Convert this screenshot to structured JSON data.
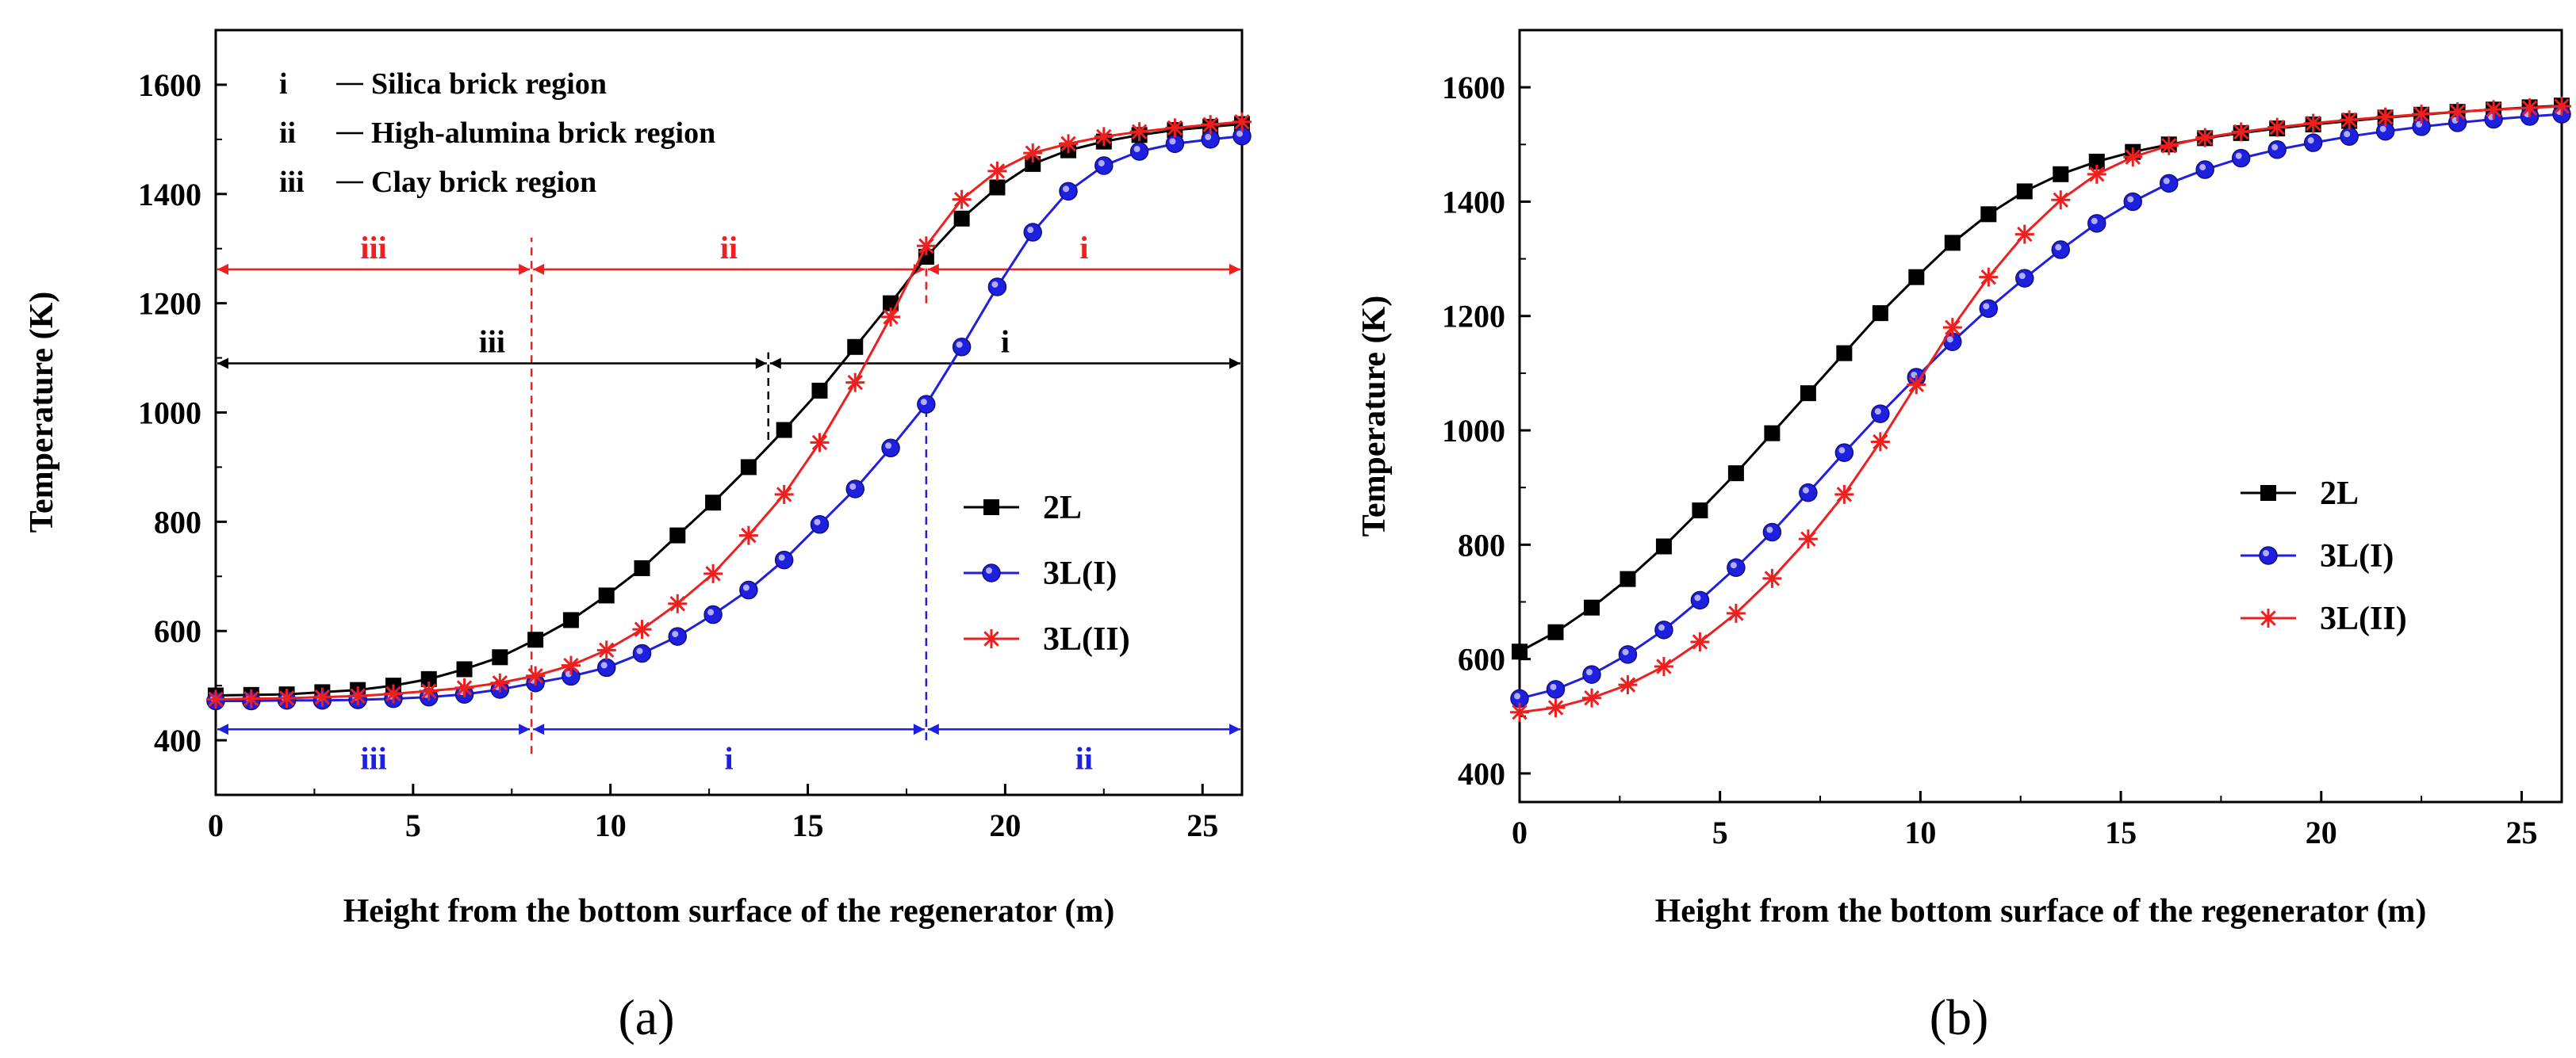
{
  "chart_data": [
    {
      "panel": "(a)",
      "type": "line",
      "xlabel": "Height from the bottom surface of the regenerator (m)",
      "ylabel": "Temperature (K)",
      "xlim": [
        0,
        26
      ],
      "ylim": [
        300,
        1700
      ],
      "xticks": [
        0,
        5,
        10,
        15,
        20,
        25
      ],
      "yticks": [
        400,
        600,
        800,
        1000,
        1200,
        1400,
        1600
      ],
      "legend_position": "middle-right",
      "series": [
        {
          "name": "2L",
          "color": "#000000",
          "marker": "square",
          "x": [
            0,
            0.9,
            1.8,
            2.7,
            3.6,
            4.5,
            5.4,
            6.3,
            7.2,
            8.1,
            9.0,
            9.9,
            10.8,
            11.7,
            12.6,
            13.5,
            14.4,
            15.3,
            16.2,
            17.1,
            18.0,
            18.9,
            19.8,
            20.7,
            21.6,
            22.5,
            23.4,
            24.3,
            25.2,
            26.0
          ],
          "y": [
            482,
            483,
            484,
            488,
            492,
            500,
            512,
            530,
            552,
            584,
            620,
            665,
            715,
            775,
            835,
            900,
            968,
            1040,
            1120,
            1200,
            1285,
            1355,
            1412,
            1455,
            1480,
            1496,
            1508,
            1517,
            1523,
            1528
          ]
        },
        {
          "name": "3L(I)",
          "color": "#1f1fe0",
          "marker": "circle",
          "x": [
            0,
            0.9,
            1.8,
            2.7,
            3.6,
            4.5,
            5.4,
            6.3,
            7.2,
            8.1,
            9.0,
            9.9,
            10.8,
            11.7,
            12.6,
            13.5,
            14.4,
            15.3,
            16.2,
            17.1,
            18.0,
            18.9,
            19.8,
            20.7,
            21.6,
            22.5,
            23.4,
            24.3,
            25.2,
            26.0
          ],
          "y": [
            472,
            472,
            473,
            473,
            474,
            476,
            479,
            484,
            493,
            505,
            517,
            533,
            559,
            590,
            630,
            675,
            730,
            795,
            860,
            935,
            1015,
            1120,
            1230,
            1330,
            1405,
            1452,
            1478,
            1492,
            1500,
            1506
          ]
        },
        {
          "name": "3L(II)",
          "color": "#ee1f1f",
          "marker": "asterisk",
          "x": [
            0,
            0.9,
            1.8,
            2.7,
            3.6,
            4.5,
            5.4,
            6.3,
            7.2,
            8.1,
            9.0,
            9.9,
            10.8,
            11.7,
            12.6,
            13.5,
            14.4,
            15.3,
            16.2,
            17.1,
            18.0,
            18.9,
            19.8,
            20.7,
            21.6,
            22.5,
            23.4,
            24.3,
            25.2,
            26.0
          ],
          "y": [
            475,
            476,
            477,
            479,
            481,
            485,
            490,
            496,
            505,
            518,
            537,
            565,
            603,
            650,
            705,
            775,
            850,
            945,
            1055,
            1175,
            1305,
            1390,
            1442,
            1475,
            1492,
            1505,
            1514,
            1521,
            1527,
            1532
          ]
        }
      ],
      "notes": [
        {
          "numeral": "i",
          "text": "Silica brick region"
        },
        {
          "numeral": "ii",
          "text": "High-alumina brick region"
        },
        {
          "numeral": "iii",
          "text": "Clay brick region"
        }
      ],
      "region_bands": [
        {
          "color": "#ee1f1f",
          "y_level": 1262,
          "dividers": [
            0,
            8,
            18,
            26
          ],
          "labels": [
            "iii",
            "ii",
            "i"
          ]
        },
        {
          "color": "#000000",
          "y_level": 1090,
          "dividers": [
            0,
            14,
            26
          ],
          "labels": [
            "iii",
            "i"
          ]
        },
        {
          "color": "#1f1fe0",
          "y_level": 420,
          "dividers": [
            0,
            8,
            18,
            26
          ],
          "labels": [
            "iii",
            "i",
            "ii"
          ]
        }
      ],
      "dashed_verticals": [
        {
          "x": 8,
          "y_from": 375,
          "y_to": 1320,
          "color": "#ee1f1f"
        },
        {
          "x": 14,
          "y_from": 950,
          "y_to": 1110,
          "color": "#000000"
        },
        {
          "x": 18,
          "y_from": 400,
          "y_to": 1010,
          "color": "#1f1fe0"
        },
        {
          "x": 18,
          "y_from": 1200,
          "y_to": 1280,
          "color": "#ee1f1f"
        }
      ]
    },
    {
      "panel": "(b)",
      "type": "line",
      "xlabel": "Height from the bottom surface of the regenerator (m)",
      "ylabel": "Temperature (K)",
      "xlim": [
        0,
        26
      ],
      "ylim": [
        350,
        1700
      ],
      "xticks": [
        0,
        5,
        10,
        15,
        20,
        25
      ],
      "yticks": [
        400,
        600,
        800,
        1000,
        1200,
        1400,
        1600
      ],
      "legend_position": "middle-right",
      "series": [
        {
          "name": "2L",
          "color": "#000000",
          "marker": "square",
          "x": [
            0,
            0.9,
            1.8,
            2.7,
            3.6,
            4.5,
            5.4,
            6.3,
            7.2,
            8.1,
            9.0,
            9.9,
            10.8,
            11.7,
            12.6,
            13.5,
            14.4,
            15.3,
            16.2,
            17.1,
            18.0,
            18.9,
            19.8,
            20.7,
            21.6,
            22.5,
            23.4,
            24.3,
            25.2,
            26.0
          ],
          "y": [
            613,
            647,
            690,
            740,
            797,
            860,
            925,
            995,
            1065,
            1135,
            1205,
            1268,
            1328,
            1378,
            1418,
            1448,
            1470,
            1487,
            1500,
            1511,
            1520,
            1528,
            1535,
            1541,
            1547,
            1552,
            1557,
            1561,
            1565,
            1568
          ]
        },
        {
          "name": "3L(I)",
          "color": "#1f1fe0",
          "marker": "circle",
          "x": [
            0,
            0.9,
            1.8,
            2.7,
            3.6,
            4.5,
            5.4,
            6.3,
            7.2,
            8.1,
            9.0,
            9.9,
            10.8,
            11.7,
            12.6,
            13.5,
            14.4,
            15.3,
            16.2,
            17.1,
            18.0,
            18.9,
            19.8,
            20.7,
            21.6,
            22.5,
            23.4,
            24.3,
            25.2,
            26.0
          ],
          "y": [
            531,
            547,
            573,
            608,
            651,
            703,
            760,
            822,
            891,
            961,
            1029,
            1093,
            1155,
            1213,
            1266,
            1316,
            1362,
            1400,
            1432,
            1456,
            1476,
            1491,
            1503,
            1514,
            1523,
            1531,
            1538,
            1544,
            1549,
            1553
          ]
        },
        {
          "name": "3L(II)",
          "color": "#ee1f1f",
          "marker": "asterisk",
          "x": [
            0,
            0.9,
            1.8,
            2.7,
            3.6,
            4.5,
            5.4,
            6.3,
            7.2,
            8.1,
            9.0,
            9.9,
            10.8,
            11.7,
            12.6,
            13.5,
            14.4,
            15.3,
            16.2,
            17.1,
            18.0,
            18.9,
            19.8,
            20.7,
            21.6,
            22.5,
            23.4,
            24.3,
            25.2,
            26.0
          ],
          "y": [
            507,
            515,
            532,
            555,
            587,
            630,
            680,
            741,
            810,
            888,
            980,
            1080,
            1180,
            1268,
            1343,
            1403,
            1448,
            1478,
            1498,
            1512,
            1522,
            1530,
            1537,
            1543,
            1548,
            1553,
            1557,
            1561,
            1564,
            1567
          ]
        }
      ]
    }
  ],
  "captions": [
    "(a)",
    "(b)"
  ],
  "colors": {
    "black": "#000000",
    "blue": "#1f1fe0",
    "red": "#ee1f1f"
  }
}
